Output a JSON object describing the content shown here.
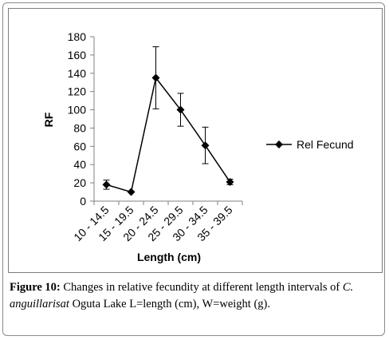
{
  "chart_data": {
    "type": "line",
    "categories": [
      "10 - 14.5",
      "15 - 19.5",
      "20 - 24.5",
      "25 - 29.5",
      "30 - 34.5",
      "35 - 39.5"
    ],
    "series": [
      {
        "name": "Rel Fecund",
        "values": [
          18,
          10,
          135,
          100,
          61,
          21
        ],
        "error": [
          5,
          0,
          34,
          18,
          20,
          3
        ],
        "color": "#000000",
        "marker": "diamond"
      }
    ],
    "xlabel": "Length (cm)",
    "ylabel": "RF",
    "ylim": [
      0,
      180
    ],
    "yticks": [
      0,
      20,
      40,
      60,
      80,
      100,
      120,
      140,
      160,
      180
    ],
    "grid": false,
    "legend": "right"
  },
  "caption": {
    "label": "Figure 10:",
    "text1": " Changes in relative fecundity at different length intervals of ",
    "species": "C. anguillarisat",
    "text2": " Oguta Lake L=length (cm), W=weight (g)."
  }
}
